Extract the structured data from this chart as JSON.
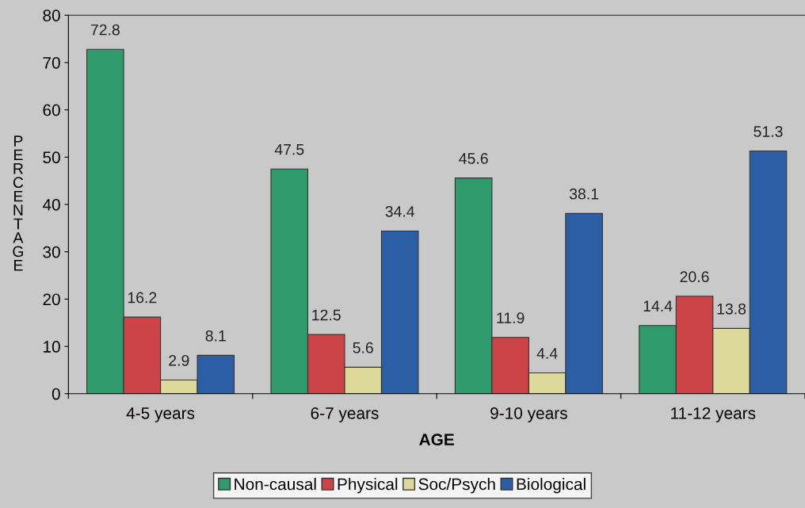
{
  "chart_data": {
    "type": "bar",
    "xlabel": "AGE",
    "ylabel": "PERCENTAGE",
    "categories": [
      "4-5 years",
      "6-7 years",
      "9-10 years",
      "11-12 years"
    ],
    "series": [
      {
        "name": "Non-causal",
        "color": "#2f9a6c",
        "values": [
          72.8,
          47.5,
          45.6,
          14.4
        ]
      },
      {
        "name": "Physical",
        "color": "#cc4448",
        "values": [
          16.2,
          12.5,
          11.9,
          20.6
        ]
      },
      {
        "name": "Soc/Psych",
        "color": "#dcd99a",
        "values": [
          2.9,
          5.6,
          4.4,
          13.8
        ]
      },
      {
        "name": "Biological",
        "color": "#2c5ea6",
        "values": [
          8.1,
          34.4,
          38.1,
          51.3
        ]
      }
    ],
    "ylim": [
      0,
      80
    ],
    "yticks": [
      0,
      10,
      20,
      30,
      40,
      50,
      60,
      70,
      80
    ],
    "data_labels": true,
    "grid": false,
    "legend": "bottom"
  }
}
